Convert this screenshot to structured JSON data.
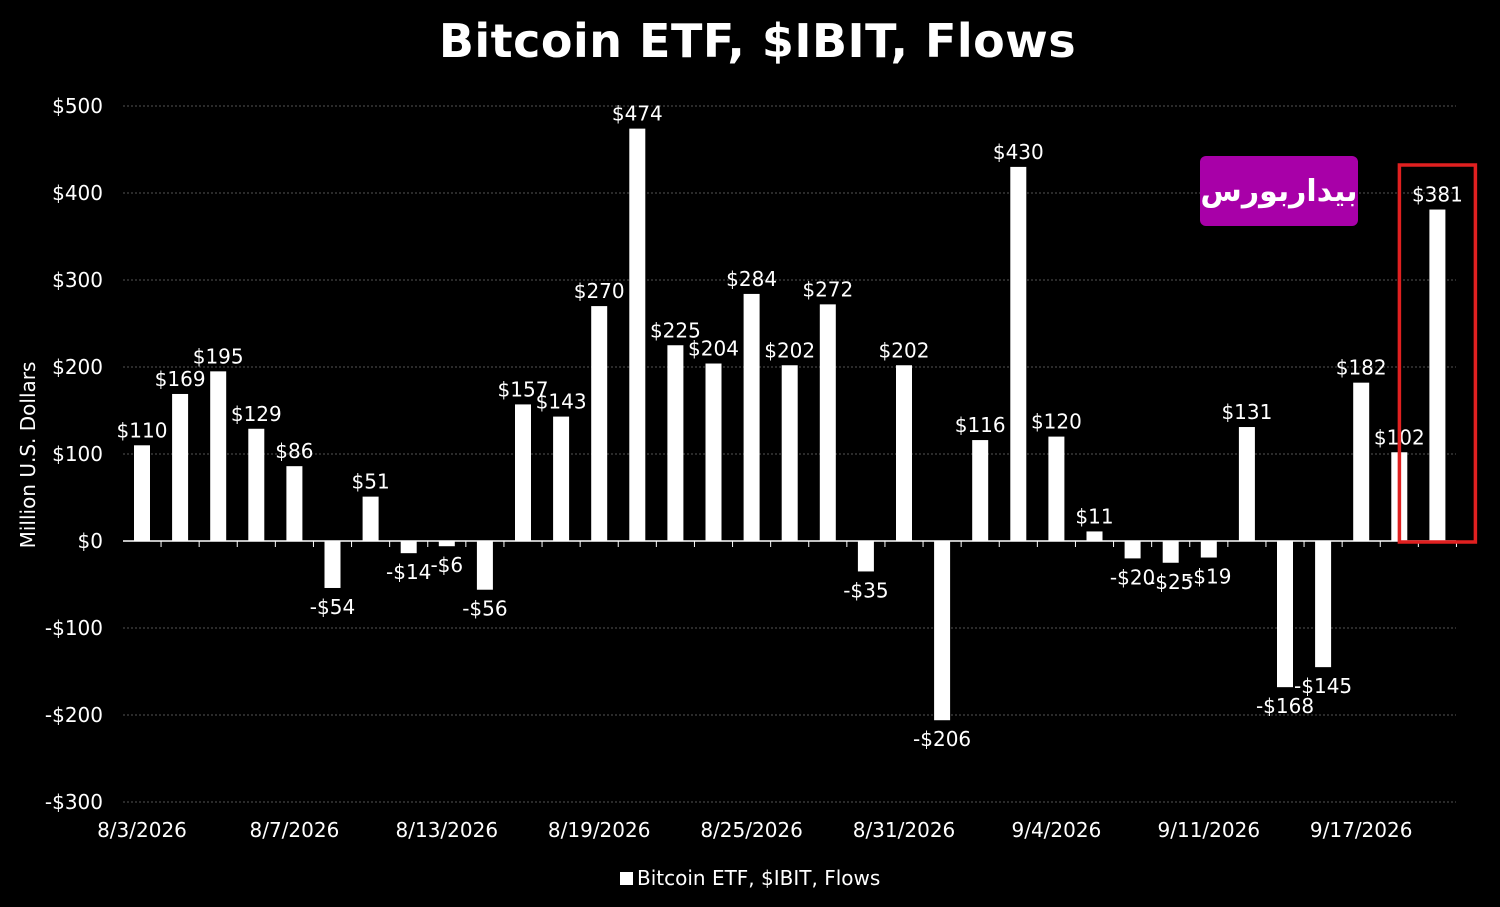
{
  "chart_data": {
    "type": "bar",
    "title": "Bitcoin ETF, $IBIT, Flows",
    "ylabel": "Million U.S. Dollars",
    "xlabel": "",
    "ylim": [
      -300,
      500
    ],
    "yticks": [
      500,
      400,
      300,
      200,
      100,
      0,
      -100,
      -200,
      -300
    ],
    "ytick_labels": [
      "$500",
      "$400",
      "$300",
      "$200",
      "$100",
      "$0",
      "-$100",
      "-$200",
      "-$300"
    ],
    "xtick_labels": [
      "8/3/2026",
      "8/7/2026",
      "8/13/2026",
      "8/19/2026",
      "8/25/2026",
      "8/31/2026",
      "9/4/2026",
      "9/11/2026",
      "9/17/2026"
    ],
    "xtick_positions": [
      0,
      4,
      8,
      12,
      16,
      20,
      24,
      28,
      32
    ],
    "grid": true,
    "legend_position": "bottom",
    "series": [
      {
        "name": "Bitcoin ETF, $IBIT, Flows",
        "color": "#ffffff",
        "values": [
          110,
          169,
          195,
          129,
          86,
          -54,
          51,
          -14,
          -6,
          -56,
          157,
          143,
          270,
          474,
          225,
          204,
          284,
          202,
          272,
          -35,
          202,
          -206,
          116,
          430,
          120,
          11,
          -20,
          -25,
          -19,
          131,
          -168,
          -145,
          182,
          102,
          381
        ],
        "labels": [
          "$110",
          "$169",
          "$195",
          "$129",
          "$86",
          "-$54",
          "$51",
          "-$14",
          "-$6",
          "-$56",
          "$157",
          "$143",
          "$270",
          "$474",
          "$225",
          "$204",
          "$284",
          "$202",
          "$272",
          "-$35",
          "$202",
          "-$206",
          "$116",
          "$430",
          "$120",
          "$11",
          "-$20",
          "-$25",
          "-$19",
          "$131",
          "-$168",
          "-$145",
          "$182",
          "$102",
          "$381"
        ]
      }
    ],
    "highlight_index": 34,
    "highlight_color": "#e02020"
  },
  "watermark_text": "بیداربورس",
  "watermark_color": "#a800a8"
}
